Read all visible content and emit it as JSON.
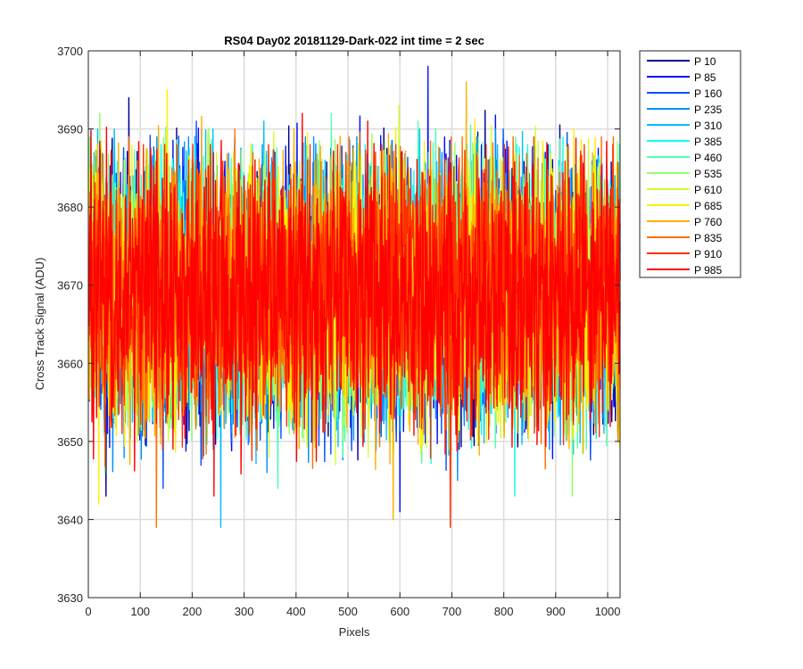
{
  "chart_data": {
    "type": "line",
    "title": "RS04 Day02 20181129-Dark-022 int time = 2 sec",
    "xlabel": "Pixels",
    "ylabel": "Cross Track Signal (ADU)",
    "xlim": [
      0,
      1024
    ],
    "ylim": [
      3630,
      3700
    ],
    "xticks": [
      0,
      100,
      200,
      300,
      400,
      500,
      600,
      700,
      800,
      900,
      1000
    ],
    "yticks": [
      3630,
      3640,
      3650,
      3660,
      3670,
      3680,
      3690,
      3700
    ],
    "grid": true,
    "legend_position": "outside-top-right",
    "noise_mean": 3669,
    "noise_spread": 6,
    "series": [
      {
        "name": "P 10",
        "color": "#00008f",
        "peak": 3694,
        "trough": 3643
      },
      {
        "name": "P 85",
        "color": "#0010ff",
        "peak": 3698,
        "trough": 3641
      },
      {
        "name": "P 160",
        "color": "#0050ff",
        "peak": 3691,
        "trough": 3644
      },
      {
        "name": "P 235",
        "color": "#0090ff",
        "peak": 3690,
        "trough": 3645
      },
      {
        "name": "P 310",
        "color": "#00c0ff",
        "peak": 3691,
        "trough": 3639
      },
      {
        "name": "P 385",
        "color": "#10ffef",
        "peak": 3689,
        "trough": 3643
      },
      {
        "name": "P 460",
        "color": "#50ffaf",
        "peak": 3692,
        "trough": 3644
      },
      {
        "name": "P 535",
        "color": "#8fff70",
        "peak": 3692,
        "trough": 3643
      },
      {
        "name": "P 610",
        "color": "#cfff30",
        "peak": 3693,
        "trough": 3647
      },
      {
        "name": "P 685",
        "color": "#ffef00",
        "peak": 3695,
        "trough": 3642
      },
      {
        "name": "P 760",
        "color": "#ffaf00",
        "peak": 3696,
        "trough": 3640
      },
      {
        "name": "P 835",
        "color": "#ff7000",
        "peak": 3690,
        "trough": 3639
      },
      {
        "name": "P 910",
        "color": "#ff3000",
        "peak": 3689,
        "trough": 3639
      },
      {
        "name": "P 985",
        "color": "#ff0000",
        "peak": 3692,
        "trough": 3643
      }
    ]
  }
}
